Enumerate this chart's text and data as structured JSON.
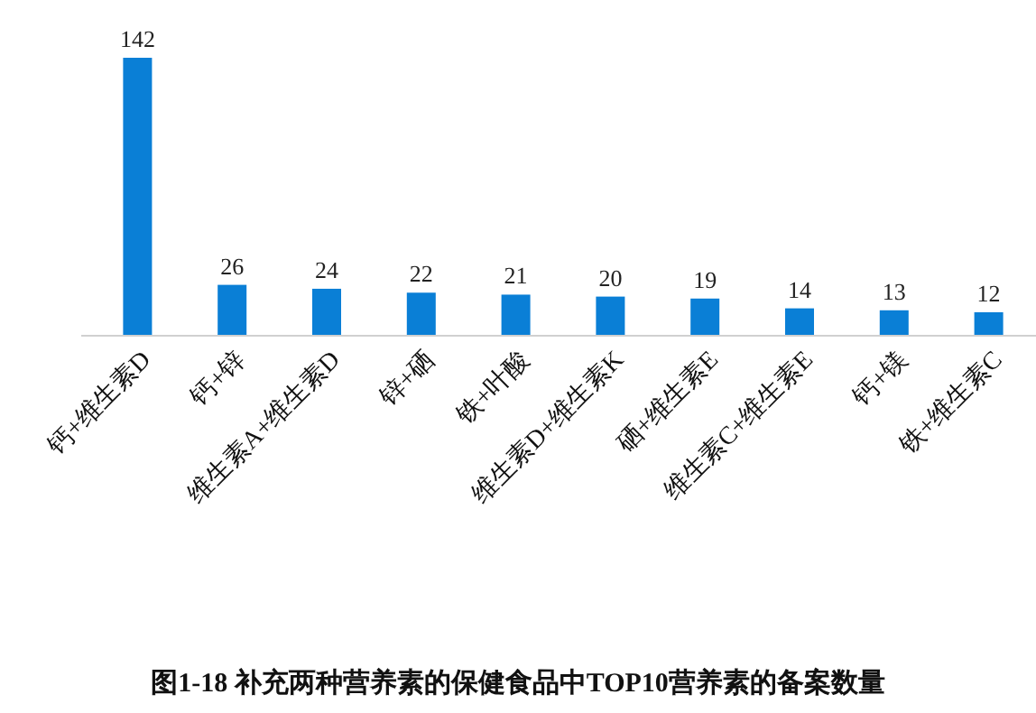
{
  "chart_data": {
    "type": "bar",
    "title": "图1-18   补充两种营养素的保健食品中TOP10营养素的备案数量",
    "categories": [
      "钙+维生素D",
      "钙+锌",
      "维生素A+维生素D",
      "锌+硒",
      "铁+叶酸",
      "维生素D+维生素K",
      "硒+维生素E",
      "维生素C+维生素E",
      "钙+镁",
      "铁+维生素C"
    ],
    "values": [
      142,
      26,
      24,
      22,
      21,
      20,
      19,
      14,
      13,
      12
    ],
    "color": "#0a7fd6",
    "data_labels": true
  }
}
